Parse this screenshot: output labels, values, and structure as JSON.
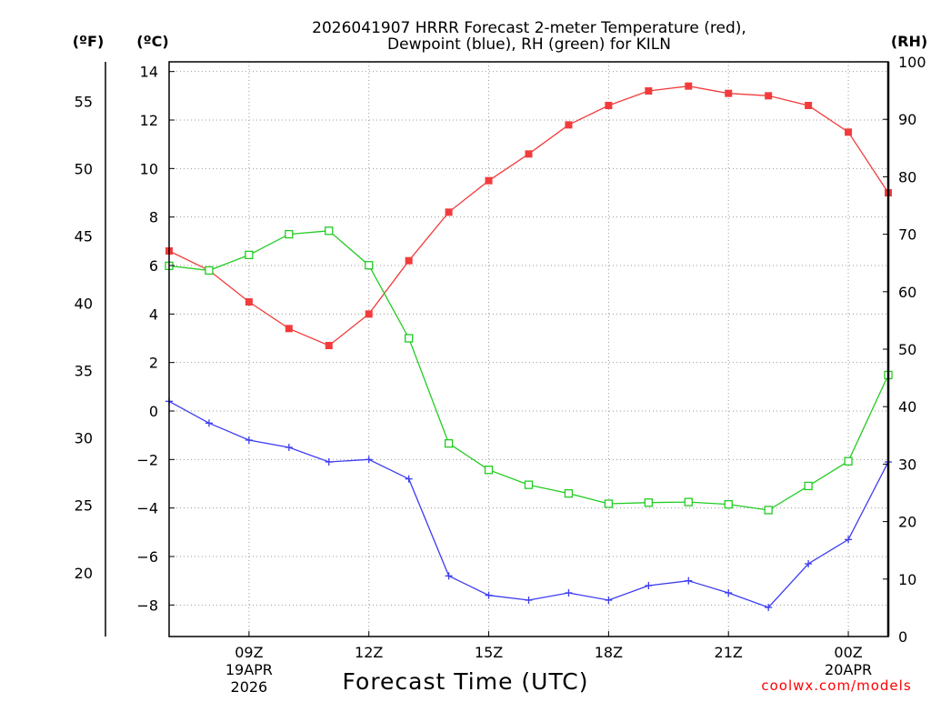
{
  "chart_data": {
    "type": "line",
    "title_line1": "2026041907 HRRR Forecast 2-meter Temperature (red),",
    "title_line2": "Dewpoint (blue), RH (green) for KILN",
    "xlabel": "Forecast Time (UTC)",
    "credit": "coolwx.com/models",
    "unit_f": "(ºF)",
    "unit_c": "(ºC)",
    "unit_rh": "(RH)",
    "x_hours": [
      7,
      8,
      9,
      10,
      11,
      12,
      13,
      14,
      15,
      16,
      17,
      18,
      19,
      20,
      21,
      22,
      23,
      24,
      25
    ],
    "xlim": [
      7,
      25
    ],
    "x_ticks": [
      {
        "hour": 9,
        "label": "09Z",
        "sub1": "19APR",
        "sub2": "2026"
      },
      {
        "hour": 12,
        "label": "12Z",
        "sub1": "",
        "sub2": ""
      },
      {
        "hour": 15,
        "label": "15Z",
        "sub1": "",
        "sub2": ""
      },
      {
        "hour": 18,
        "label": "18Z",
        "sub1": "",
        "sub2": ""
      },
      {
        "hour": 21,
        "label": "21Z",
        "sub1": "",
        "sub2": ""
      },
      {
        "hour": 24,
        "label": "00Z",
        "sub1": "20APR",
        "sub2": ""
      }
    ],
    "celsius_axis": {
      "range": [
        -9.3,
        14.4
      ],
      "ticks": [
        "14",
        "12",
        "10",
        "8",
        "6",
        "4",
        "2",
        "0",
        "−2",
        "−4",
        "−6",
        "−8"
      ],
      "tick_values": [
        14,
        12,
        10,
        8,
        6,
        4,
        2,
        0,
        -2,
        -4,
        -6,
        -8
      ]
    },
    "fahrenheit_axis": {
      "ticks": [
        "55",
        "50",
        "45",
        "40",
        "35",
        "30",
        "25",
        "20"
      ],
      "tick_values": [
        55,
        50,
        45,
        40,
        35,
        30,
        25,
        20
      ]
    },
    "rh_axis": {
      "range": [
        0,
        100
      ],
      "ticks": [
        "100",
        "90",
        "80",
        "70",
        "60",
        "50",
        "40",
        "30",
        "20",
        "10",
        "0"
      ],
      "tick_values": [
        100,
        90,
        80,
        70,
        60,
        50,
        40,
        30,
        20,
        10,
        0
      ]
    },
    "series": [
      {
        "name": "Temperature",
        "units": "C",
        "color": "#f23c3c",
        "marker": "filled-square",
        "values": [
          6.6,
          5.8,
          4.5,
          3.4,
          2.7,
          4.0,
          6.2,
          8.2,
          9.5,
          10.6,
          11.8,
          12.6,
          13.2,
          13.4,
          13.1,
          13.0,
          12.6,
          11.5,
          9.0
        ]
      },
      {
        "name": "Dewpoint",
        "units": "C",
        "color": "#3c3cf2",
        "marker": "plus",
        "values": [
          0.4,
          -0.5,
          -1.2,
          -1.5,
          -2.1,
          -2.0,
          -2.8,
          -6.8,
          -7.6,
          -7.8,
          -7.5,
          -7.8,
          -7.2,
          -7.0,
          -7.5,
          -8.1,
          -6.3,
          -5.3,
          -2.1
        ]
      },
      {
        "name": "RH",
        "units": "%",
        "color": "#22cc22",
        "marker": "open-square",
        "values": [
          64.5,
          63.7,
          66.4,
          70.0,
          70.6,
          64.6,
          51.9,
          33.6,
          29.0,
          26.4,
          24.9,
          23.1,
          23.3,
          23.4,
          23.0,
          22.0,
          26.2,
          30.5,
          45.5
        ]
      }
    ]
  }
}
